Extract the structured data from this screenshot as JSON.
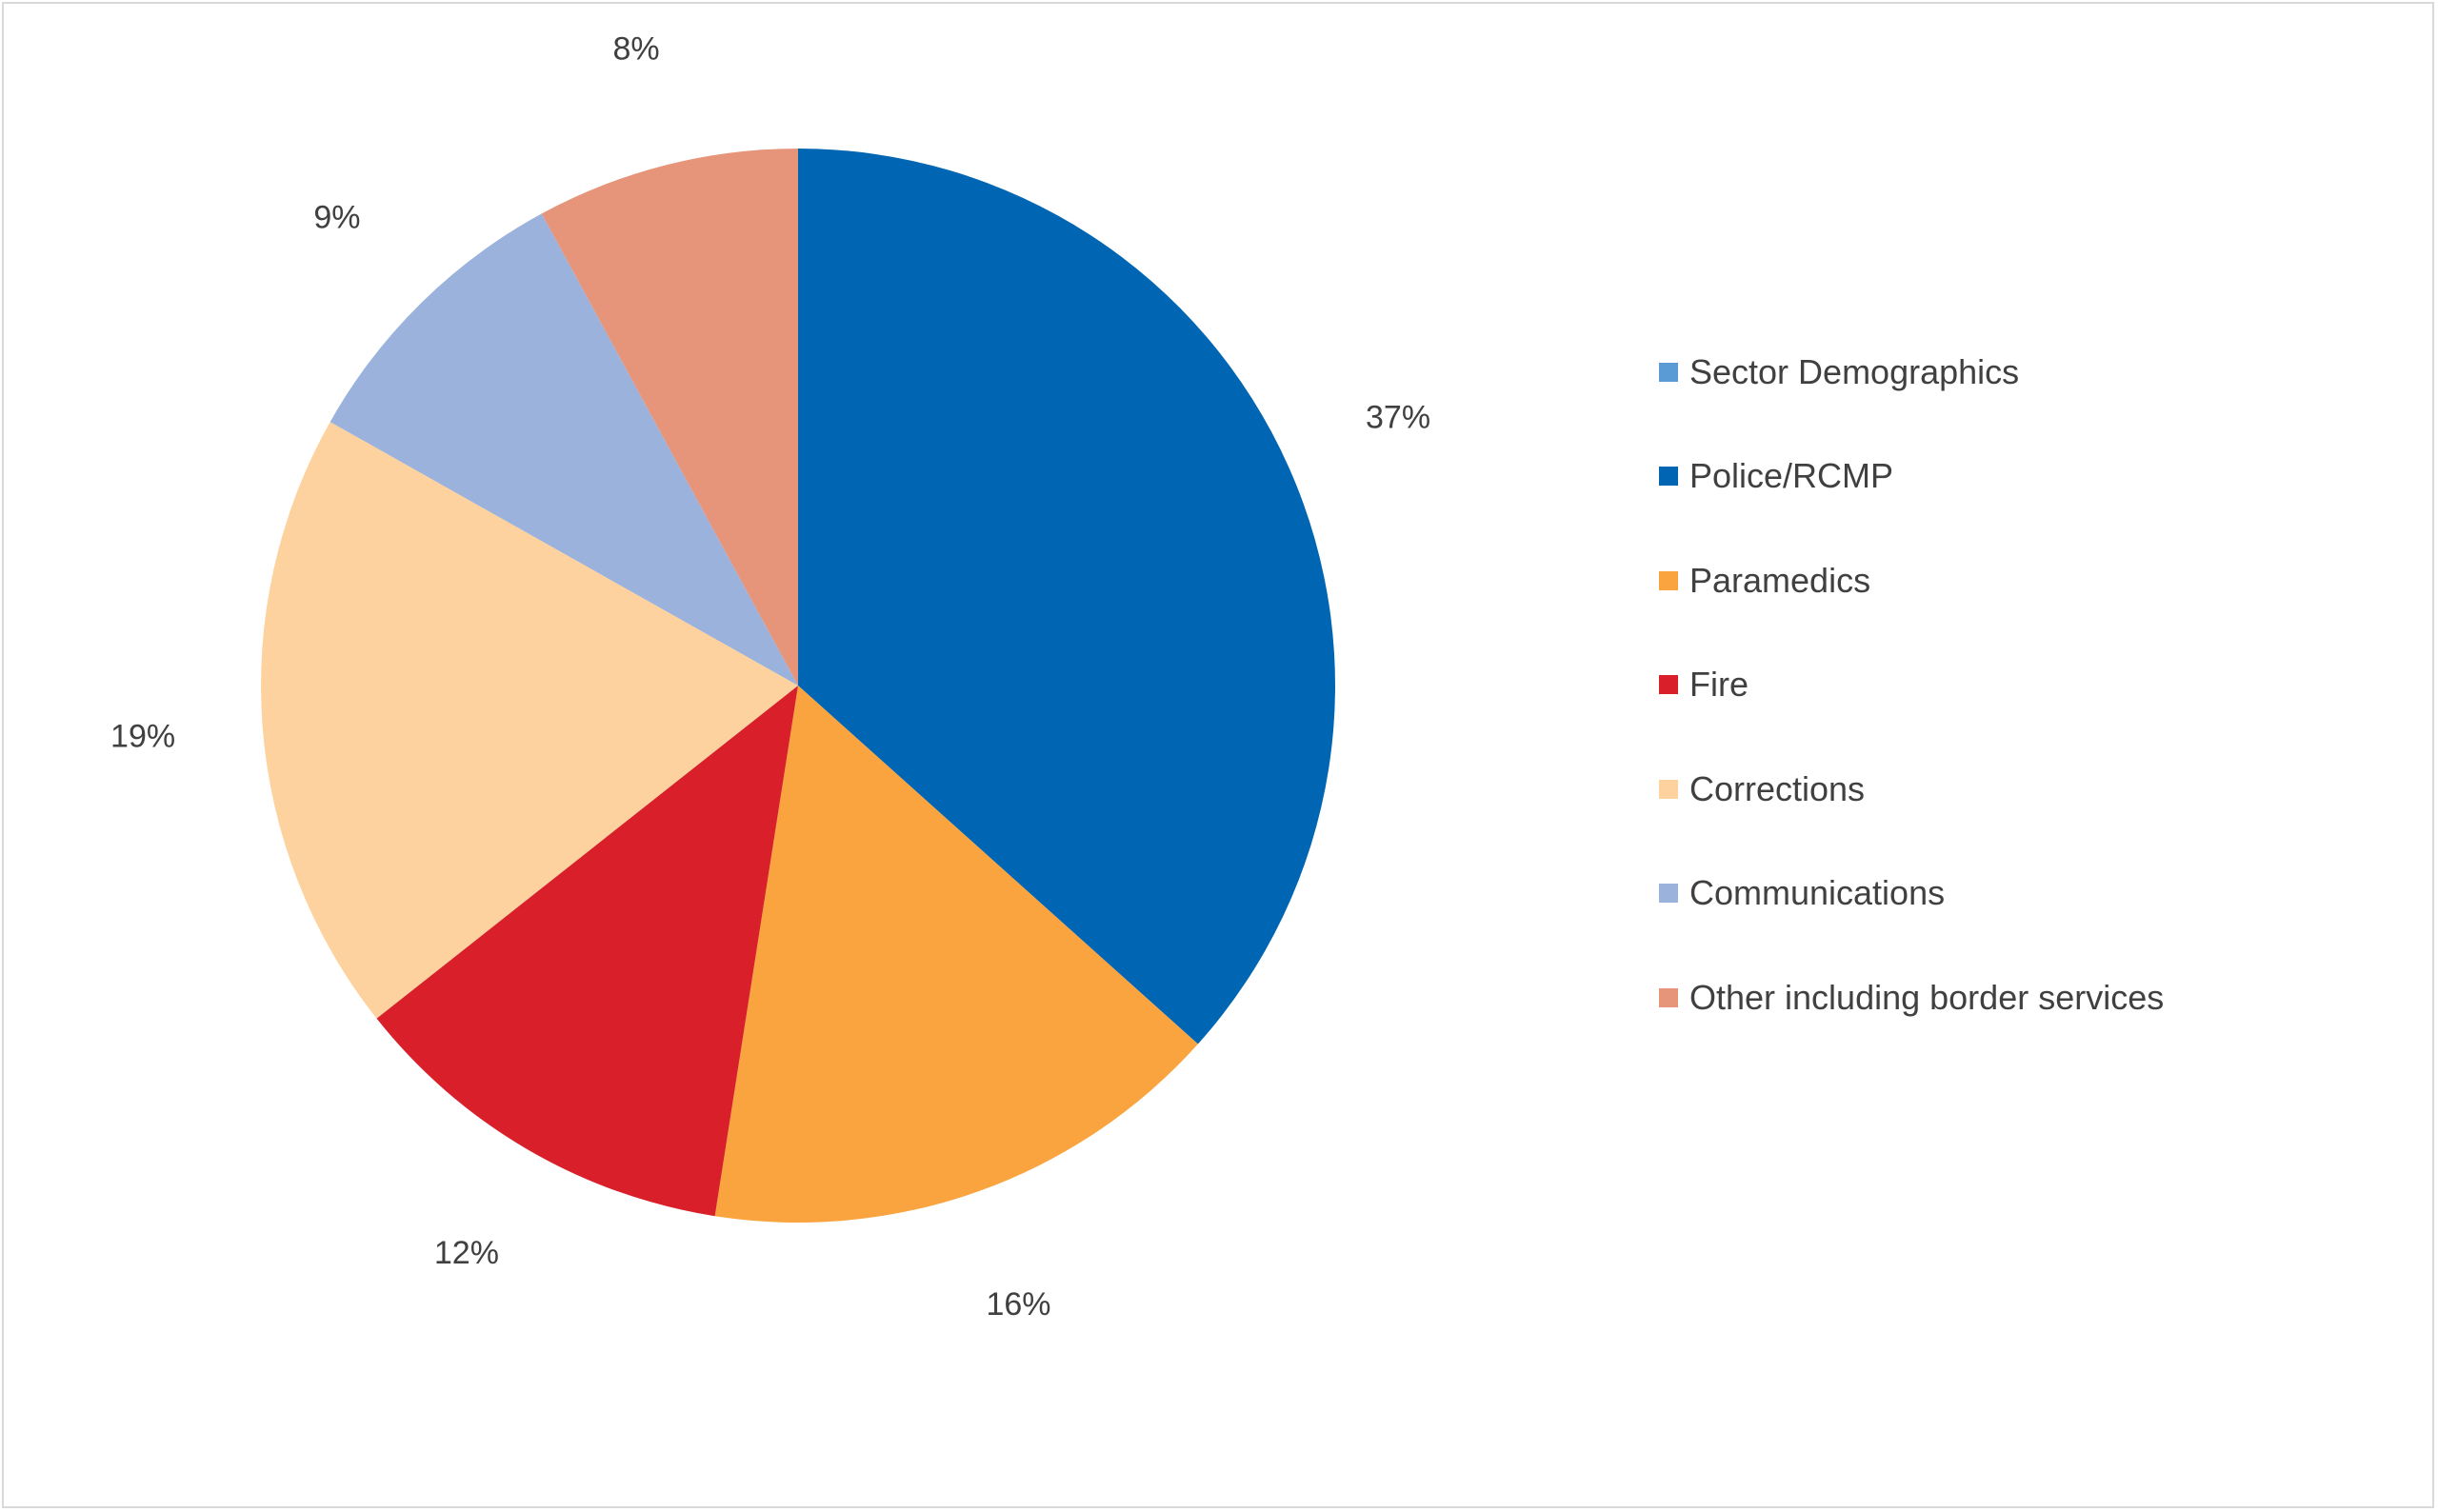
{
  "chart_data": {
    "type": "pie",
    "title": "",
    "legend_position": "right",
    "legend": [
      {
        "label": "Sector Demographics",
        "color": "#5B9BD5"
      },
      {
        "label": "Police/RCMP",
        "color": "#0066B3"
      },
      {
        "label": "Paramedics",
        "color": "#F9A43F"
      },
      {
        "label": "Fire",
        "color": "#D81F2A"
      },
      {
        "label": "Corrections",
        "color": "#FDD29E"
      },
      {
        "label": "Communications",
        "color": "#9AB2DC"
      },
      {
        "label": "Other including border services",
        "color": "#E7957A"
      }
    ],
    "slices": [
      {
        "category": "Police/RCMP",
        "value": 37,
        "label": "37%",
        "color": "#0066B3"
      },
      {
        "category": "Paramedics",
        "value": 16,
        "label": "16%",
        "color": "#F9A43F"
      },
      {
        "category": "Fire",
        "value": 12,
        "label": "12%",
        "color": "#D81F2A"
      },
      {
        "category": "Corrections",
        "value": 19,
        "label": "19%",
        "color": "#FDD29E"
      },
      {
        "category": "Communications",
        "value": 9,
        "label": "9%",
        "color": "#9AB2DC"
      },
      {
        "category": "Other including border services",
        "value": 8,
        "label": "8%",
        "color": "#E7957A"
      }
    ]
  }
}
